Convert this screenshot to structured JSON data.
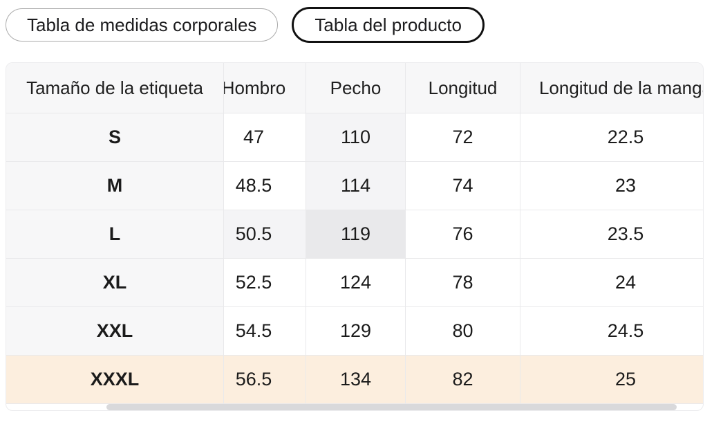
{
  "tabs": [
    {
      "label": "Tabla de medidas corporales",
      "active": false
    },
    {
      "label": "Tabla del producto",
      "active": true
    }
  ],
  "table": {
    "columns": [
      "Tamaño de la etiqueta",
      "Hombro",
      "Pecho",
      "Longitud",
      "Longitud de la manga"
    ],
    "rows": [
      {
        "size": "S",
        "values": [
          "47",
          "110",
          "72",
          "22.5"
        ]
      },
      {
        "size": "M",
        "values": [
          "48.5",
          "114",
          "74",
          "23"
        ]
      },
      {
        "size": "L",
        "values": [
          "50.5",
          "119",
          "76",
          "23.5"
        ]
      },
      {
        "size": "XL",
        "values": [
          "52.5",
          "124",
          "78",
          "24"
        ]
      },
      {
        "size": "XXL",
        "values": [
          "54.5",
          "129",
          "80",
          "24.5"
        ]
      },
      {
        "size": "XXXL",
        "values": [
          "56.5",
          "134",
          "82",
          "25"
        ]
      }
    ],
    "selected_row": "XXXL",
    "hovered_cell": {
      "row": "L",
      "column": "Pecho"
    }
  },
  "colors": {
    "text": "#1c1c1e",
    "header_bg": "#f7f7f8",
    "trail_tint": "#f4f4f6",
    "hovered_cell_bg": "#e9e9eb",
    "selected_row_bg": "#fceede",
    "border": "#e9e9eb",
    "scrollbar_thumb": "#d9d9db",
    "active_tab_border": "#111111",
    "inactive_tab_border": "#ababab"
  }
}
